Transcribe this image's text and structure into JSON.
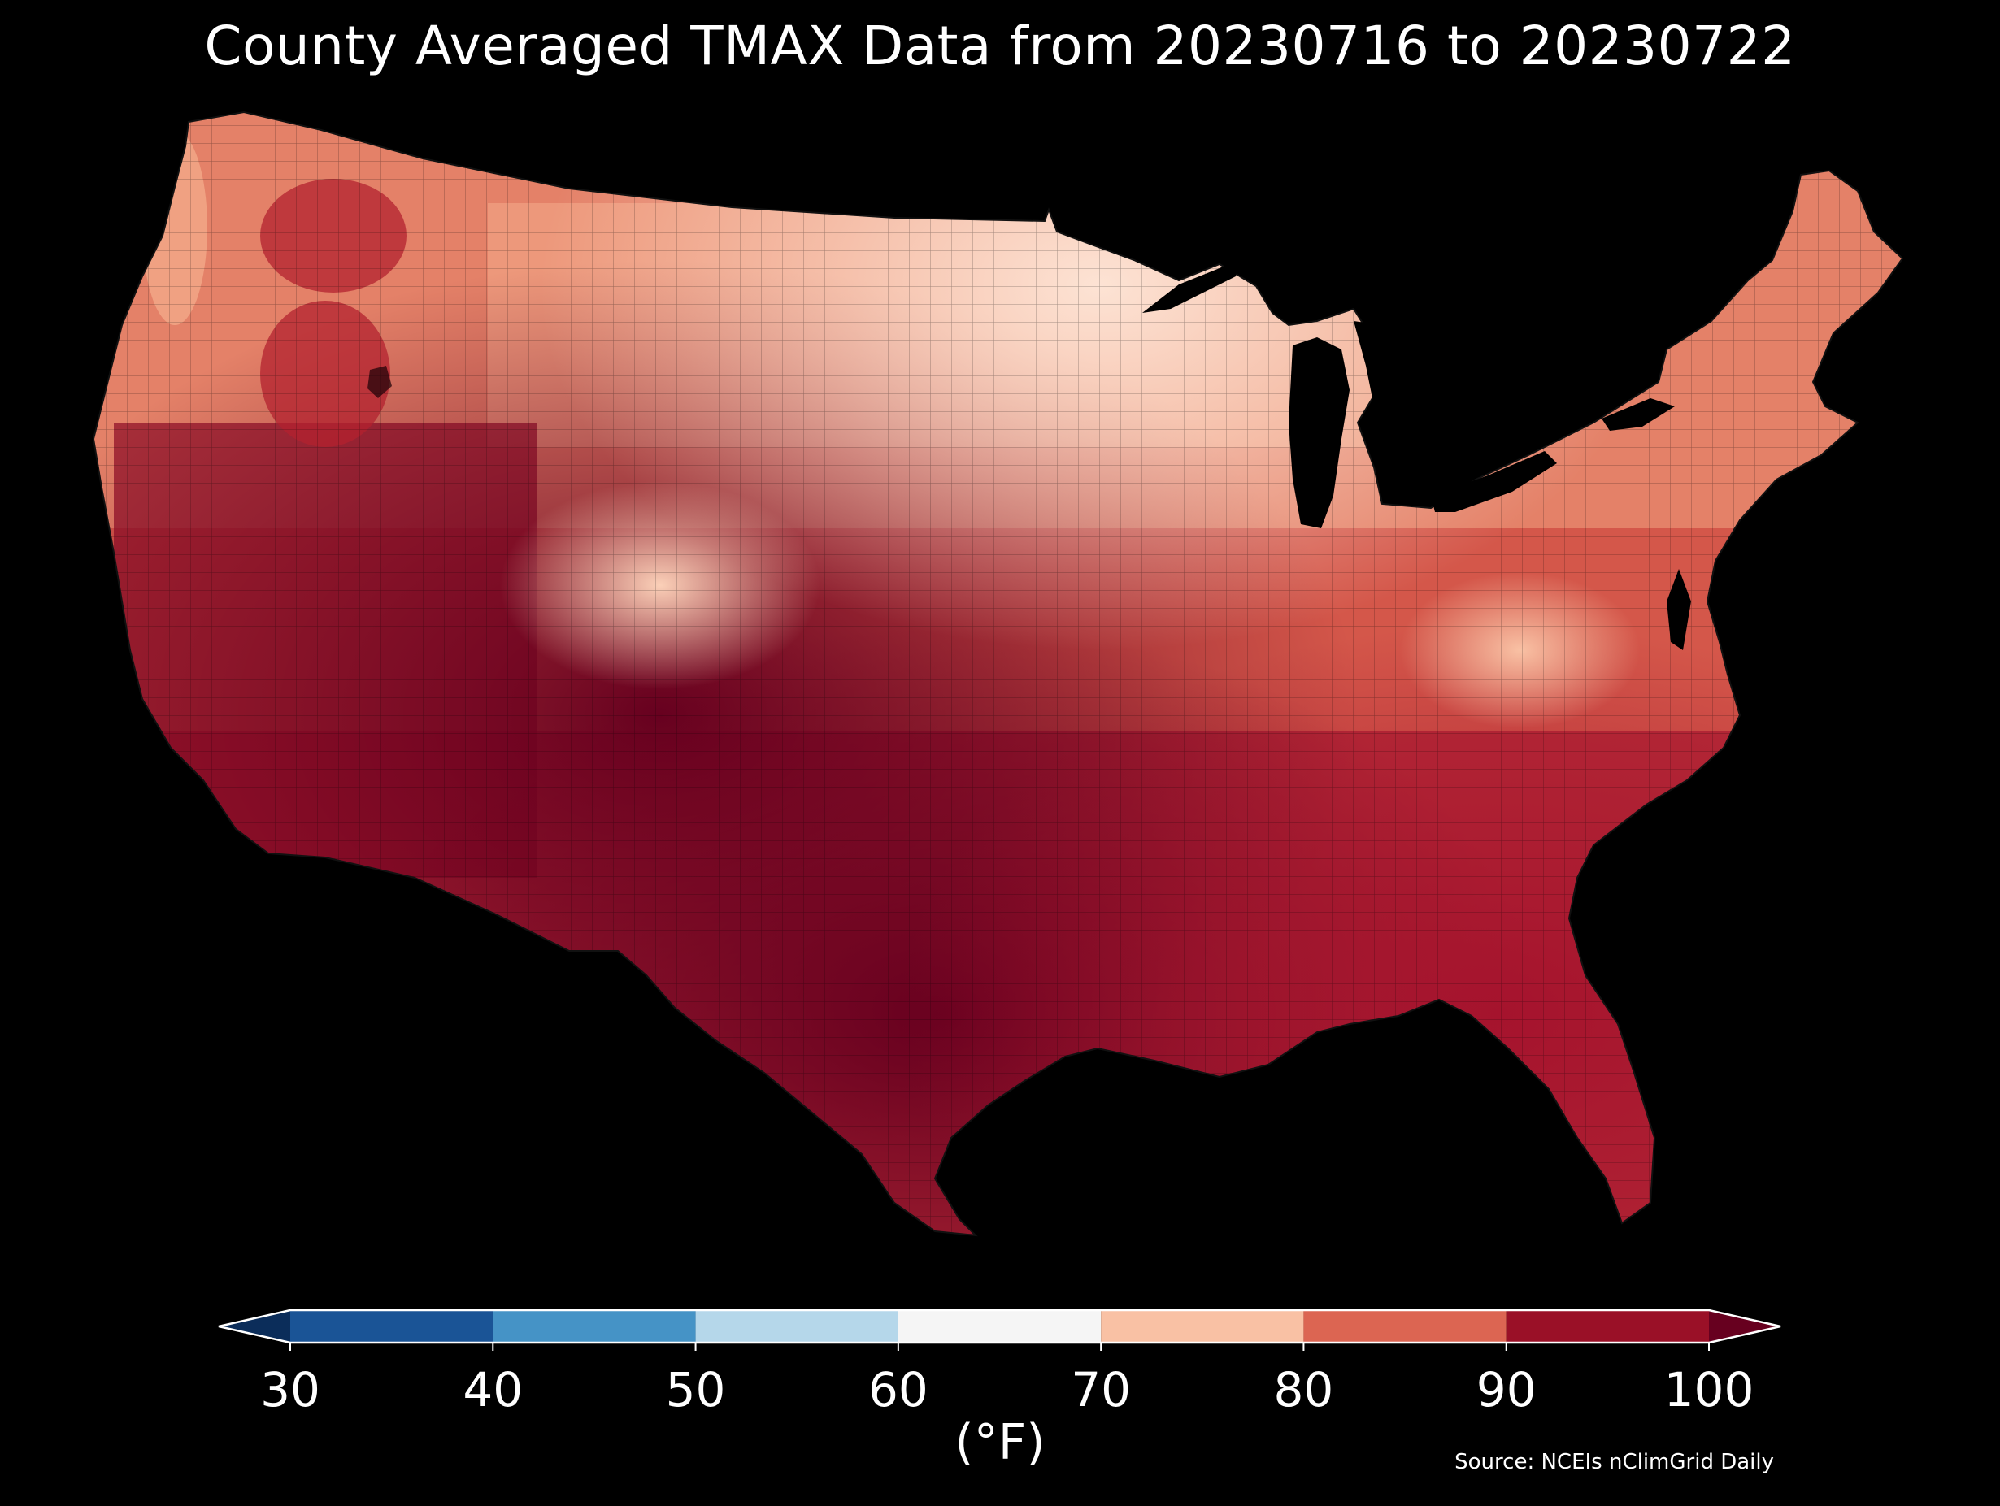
{
  "title": "County Averaged TMAX Data from 20230716 to 20230722",
  "colorbar": {
    "unit_label": "(°F)",
    "ticks": [
      "30",
      "40",
      "50",
      "60",
      "70",
      "80",
      "90",
      "100"
    ],
    "bins": [
      {
        "min": 30,
        "max": 40,
        "color": "#1a5496"
      },
      {
        "min": 40,
        "max": 50,
        "color": "#4593c6"
      },
      {
        "min": 50,
        "max": 60,
        "color": "#b5d7ea"
      },
      {
        "min": 60,
        "max": 70,
        "color": "#f5f5f5"
      },
      {
        "min": 70,
        "max": 80,
        "color": "#f9c1a4"
      },
      {
        "min": 80,
        "max": 90,
        "color": "#dc6552"
      },
      {
        "min": 90,
        "max": 100,
        "color": "#9a1027"
      }
    ],
    "under_color": "#0b2d5a",
    "over_color": "#67001f"
  },
  "source": "Source: NCEIs nClimGrid Daily",
  "map": {
    "region": "Contiguous United States",
    "variable": "County averaged daily maximum temperature",
    "background_color": "#000000",
    "water_color": "#000000"
  }
}
